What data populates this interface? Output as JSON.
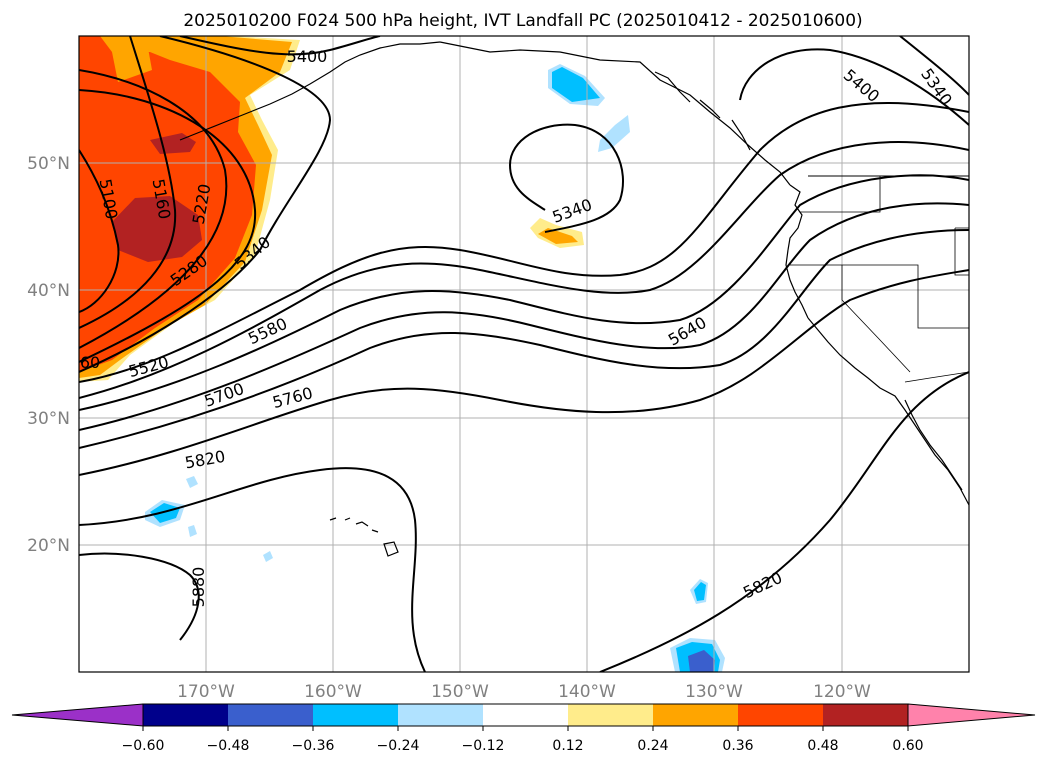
{
  "title": "2025010200 F024 500 hPa height, IVT Landfall PC (2025010412 - 2025010600)",
  "map": {
    "lat_labels": [
      "50°N",
      "40°N",
      "30°N",
      "20°N"
    ],
    "lon_labels": [
      "170°W",
      "160°W",
      "150°W",
      "140°W",
      "130°W",
      "120°W"
    ],
    "lat_values": [
      50,
      40,
      30,
      20
    ],
    "lon_values": [
      -170,
      -160,
      -150,
      -140,
      -130,
      -120
    ],
    "contour_labels": [
      "5400",
      "5340",
      "5400",
      "5340",
      "5100",
      "5160",
      "5220",
      "5280",
      "5340",
      "5580",
      "5640",
      "5520",
      "60",
      "5700",
      "5760",
      "5820",
      "5820",
      "5880"
    ],
    "colors": {
      "land_outline": "#000000",
      "grid": "#b0b0b0",
      "contour": "#000000"
    }
  },
  "colorbar": {
    "ticks": [
      "−0.60",
      "−0.48",
      "−0.36",
      "−0.24",
      "−0.12",
      "0.12",
      "0.24",
      "0.36",
      "0.48",
      "0.60"
    ],
    "bins": [
      {
        "color": "#9b30c8"
      },
      {
        "color": "#00008b"
      },
      {
        "color": "#3a5fcd"
      },
      {
        "color": "#00bfff"
      },
      {
        "color": "#b0e2ff"
      },
      {
        "color": "#ffffff"
      },
      {
        "color": "#ffec8b"
      },
      {
        "color": "#ffa500"
      },
      {
        "color": "#ff4500"
      },
      {
        "color": "#b22222"
      },
      {
        "color": "#ff82ab"
      },
      {
        "color": "#ff82ab"
      }
    ]
  }
}
